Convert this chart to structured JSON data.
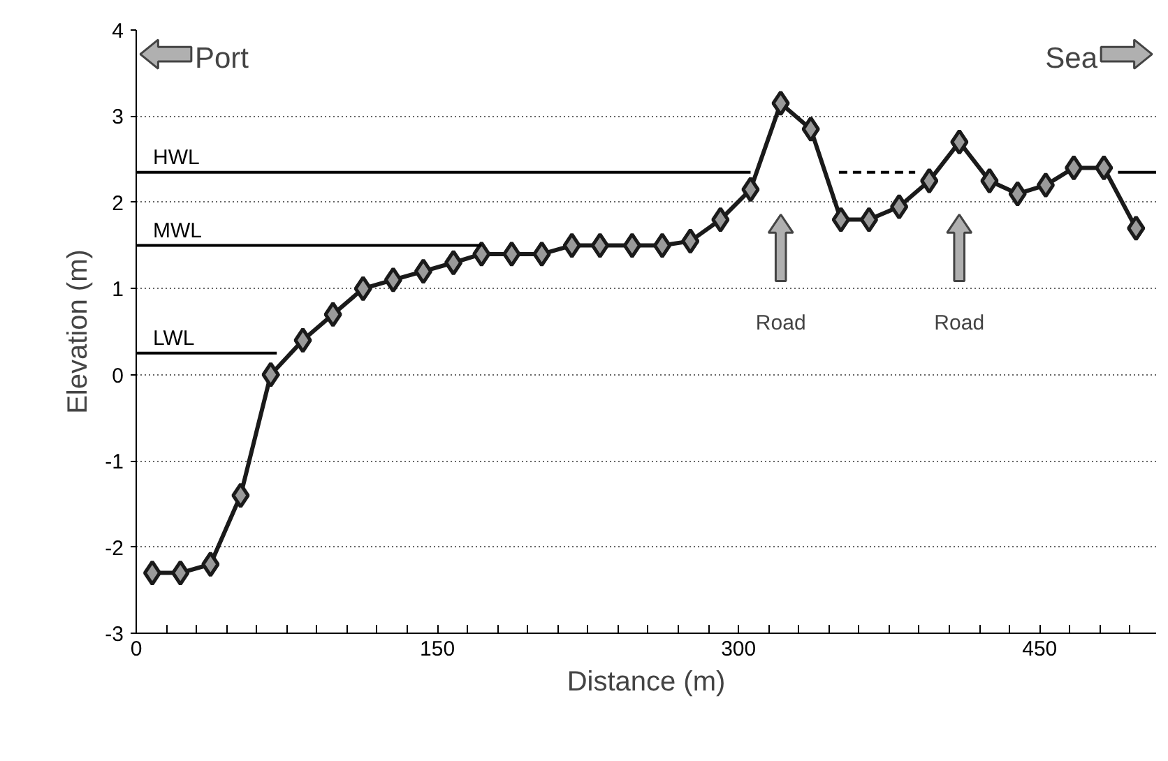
{
  "chart_data": {
    "type": "line",
    "xlabel": "Distance (m)",
    "ylabel": "Elevation (m)",
    "xlim": [
      0,
      508
    ],
    "ylim": [
      -3,
      4
    ],
    "xticks": [
      0,
      {
        "value": 15,
        "label": null
      },
      {
        "value": 30,
        "label": null
      },
      {
        "value": 45,
        "label": null
      },
      {
        "value": 60,
        "label": null
      },
      {
        "value": 75,
        "label": null
      },
      {
        "value": 90,
        "label": null
      },
      {
        "value": 105,
        "label": null
      },
      {
        "value": 120,
        "label": null
      },
      {
        "value": 135,
        "label": null
      },
      150,
      {
        "value": 165,
        "label": null
      },
      {
        "value": 180,
        "label": null
      },
      {
        "value": 195,
        "label": null
      },
      {
        "value": 210,
        "label": null
      },
      {
        "value": 225,
        "label": null
      },
      {
        "value": 240,
        "label": null
      },
      {
        "value": 255,
        "label": null
      },
      {
        "value": 270,
        "label": null
      },
      {
        "value": 285,
        "label": null
      },
      300,
      {
        "value": 315,
        "label": null
      },
      {
        "value": 330,
        "label": null
      },
      {
        "value": 345,
        "label": null
      },
      {
        "value": 360,
        "label": null
      },
      {
        "value": 375,
        "label": null
      },
      {
        "value": 390,
        "label": null
      },
      {
        "value": 405,
        "label": null
      },
      {
        "value": 420,
        "label": null
      },
      {
        "value": 435,
        "label": null
      },
      450,
      {
        "value": 465,
        "label": null
      },
      {
        "value": 480,
        "label": null
      },
      {
        "value": 495,
        "label": null
      }
    ],
    "yticks": [
      -3,
      -2,
      -1,
      0,
      1,
      2,
      3,
      4
    ],
    "grid": "y",
    "series": [
      {
        "color": "#1a1a1a",
        "marker": "diamond",
        "line_style": "solid",
        "x": [
          8,
          22,
          37,
          52,
          67,
          83,
          98,
          113,
          128,
          143,
          158,
          172,
          187,
          202,
          217,
          231,
          247,
          262,
          276,
          291,
          306,
          321,
          336,
          351,
          365,
          380,
          395,
          410,
          425,
          439,
          453,
          467,
          482,
          498
        ],
        "values": [
          -2.3,
          -2.3,
          -2.2,
          -1.4,
          0.0,
          0.4,
          0.7,
          1.0,
          1.1,
          1.2,
          1.3,
          1.4,
          1.4,
          1.4,
          1.5,
          1.5,
          1.5,
          1.5,
          1.55,
          1.8,
          2.15,
          3.15,
          2.85,
          1.8,
          1.8,
          1.95,
          2.25,
          2.7,
          2.25,
          2.1,
          2.2,
          2.4,
          2.4,
          1.7
        ]
      },
      {
        "name": "HWL",
        "type": "line",
        "color": "#000000",
        "marker": "none",
        "line_style": "solid",
        "x": [
          0,
          306
        ],
        "values": [
          2.35,
          2.35
        ]
      },
      {
        "type": "line",
        "color": "#000000",
        "marker": "none",
        "line_style": "dashed",
        "x": [
          350,
          388
        ],
        "values": [
          2.35,
          2.35
        ]
      },
      {
        "type": "line",
        "color": "#000000",
        "marker": "none",
        "line_style": "solid",
        "x": [
          489,
          508
        ],
        "values": [
          2.35,
          2.35
        ]
      },
      {
        "name": "MWL",
        "type": "line",
        "color": "#000000",
        "marker": "none",
        "line_style": "solid",
        "x": [
          0,
          172
        ],
        "values": [
          1.5,
          1.5
        ]
      },
      {
        "name": "LWL",
        "type": "line",
        "color": "#000000",
        "marker": "none",
        "line_style": "solid",
        "x": [
          0,
          70
        ],
        "values": [
          0.25,
          0.25
        ]
      }
    ],
    "annotations": [
      "Port",
      "Sea",
      "Road",
      "Road"
    ]
  }
}
